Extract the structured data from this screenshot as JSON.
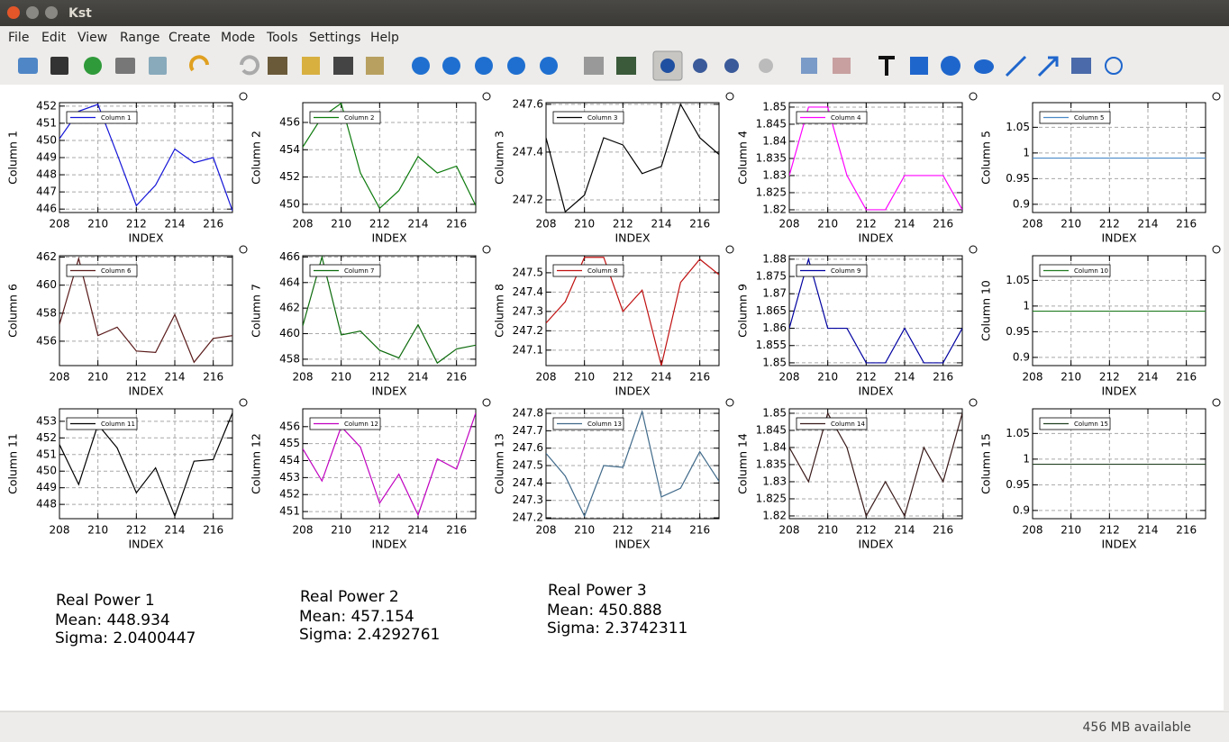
{
  "window": {
    "title": "Kst"
  },
  "menu": [
    "File",
    "Edit",
    "View",
    "Range",
    "Create",
    "Mode",
    "Tools",
    "Settings",
    "Help"
  ],
  "status": "456 MB available",
  "stats": [
    {
      "title": "Real Power 1",
      "mean": "Mean: 448.934",
      "sigma": "Sigma: 2.0400447"
    },
    {
      "title": "Real Power 2",
      "mean": "Mean: 457.154",
      "sigma": "Sigma: 2.4292761"
    },
    {
      "title": "Real Power 3",
      "mean": "Mean: 450.888",
      "sigma": "Sigma: 2.3742311"
    }
  ],
  "chart_data": [
    {
      "type": "line",
      "ylabel": "Column 1",
      "xlabel": "INDEX",
      "grid": true,
      "x": [
        208,
        209,
        210,
        211,
        212,
        213,
        214,
        215,
        216,
        217
      ],
      "xlim": [
        208,
        217
      ],
      "xticks": [
        208,
        210,
        212,
        214,
        216
      ],
      "ylim": [
        445.8,
        452.2
      ],
      "yticks": [
        446,
        447,
        448,
        449,
        450,
        451,
        452
      ],
      "series": [
        {
          "name": "Column 1",
          "color": "#1414d8",
          "values": [
            450.1,
            451.7,
            452.1,
            449.2,
            446.2,
            447.4,
            449.5,
            448.7,
            449.0,
            445.9
          ]
        }
      ]
    },
    {
      "type": "line",
      "ylabel": "Column 2",
      "xlabel": "INDEX",
      "grid": true,
      "x": [
        208,
        209,
        210,
        211,
        212,
        213,
        214,
        215,
        216,
        217
      ],
      "xlim": [
        208,
        217
      ],
      "xticks": [
        208,
        210,
        212,
        214,
        216
      ],
      "ylim": [
        449.4,
        457.45
      ],
      "yticks": [
        450,
        452,
        454,
        456
      ],
      "series": [
        {
          "name": "Column 2",
          "color": "#0c7a0c",
          "values": [
            454.2,
            456.4,
            457.4,
            452.3,
            449.7,
            451.0,
            453.5,
            452.3,
            452.8,
            449.9
          ]
        }
      ]
    },
    {
      "type": "line",
      "ylabel": "Column 3",
      "xlabel": "INDEX",
      "grid": true,
      "x": [
        208,
        209,
        210,
        211,
        212,
        213,
        214,
        215,
        216,
        217
      ],
      "xlim": [
        208,
        217
      ],
      "xticks": [
        208,
        210,
        212,
        214,
        216
      ],
      "ylim": [
        247.147,
        247.607
      ],
      "yticks": [
        247.2,
        247.4,
        247.6
      ],
      "series": [
        {
          "name": "Column 3",
          "color": "#000000",
          "values": [
            247.46,
            247.15,
            247.22,
            247.46,
            247.43,
            247.31,
            247.34,
            247.6,
            247.46,
            247.39
          ]
        }
      ]
    },
    {
      "type": "line",
      "ylabel": "Column 4",
      "xlabel": "INDEX",
      "grid": true,
      "x": [
        208,
        209,
        210,
        211,
        212,
        213,
        214,
        215,
        216,
        217
      ],
      "xlim": [
        208,
        217
      ],
      "xticks": [
        208,
        210,
        212,
        214,
        216
      ],
      "ylim": [
        1.8192,
        1.8513
      ],
      "yticks": [
        1.82,
        1.825,
        1.83,
        1.835,
        1.84,
        1.845,
        1.85
      ],
      "series": [
        {
          "name": "Column 4",
          "color": "#ff00ff",
          "values": [
            1.83,
            1.85,
            1.85,
            1.83,
            1.82,
            1.82,
            1.83,
            1.83,
            1.83,
            1.82
          ]
        }
      ]
    },
    {
      "type": "line",
      "ylabel": "Column 5",
      "xlabel": "INDEX",
      "grid": true,
      "x": [
        208,
        209,
        210,
        211,
        212,
        213,
        214,
        215,
        216,
        217
      ],
      "xlim": [
        208,
        217
      ],
      "xticks": [
        208,
        210,
        212,
        214,
        216
      ],
      "ylim": [
        0.884,
        1.098
      ],
      "yticks": [
        0.9,
        0.95,
        1,
        1.05
      ],
      "series": [
        {
          "name": "Column 5",
          "color": "#4a8ac8",
          "values": [
            0.99,
            0.99,
            0.99,
            0.99,
            0.99,
            0.99,
            0.99,
            0.99,
            0.99,
            0.99
          ]
        }
      ]
    },
    {
      "type": "line",
      "ylabel": "Column 6",
      "xlabel": "INDEX",
      "grid": true,
      "x": [
        208,
        209,
        210,
        211,
        212,
        213,
        214,
        215,
        216,
        217
      ],
      "xlim": [
        208,
        217
      ],
      "xticks": [
        208,
        210,
        212,
        214,
        216
      ],
      "ylim": [
        454.26,
        462.1
      ],
      "yticks": [
        456,
        458,
        460,
        462
      ],
      "series": [
        {
          "name": "Column 6",
          "color": "#5a1a1a",
          "values": [
            457.2,
            461.9,
            456.4,
            457.0,
            455.3,
            455.2,
            457.9,
            454.5,
            456.2,
            456.4
          ]
        }
      ]
    },
    {
      "type": "line",
      "ylabel": "Column 7",
      "xlabel": "INDEX",
      "grid": true,
      "x": [
        208,
        209,
        210,
        211,
        212,
        213,
        214,
        215,
        216,
        217
      ],
      "xlim": [
        208,
        217
      ],
      "xticks": [
        208,
        210,
        212,
        214,
        216
      ],
      "ylim": [
        457.5,
        466.1
      ],
      "yticks": [
        458,
        460,
        462,
        464,
        466
      ],
      "series": [
        {
          "name": "Column 7",
          "color": "#0c6a0c",
          "values": [
            460.6,
            466.0,
            459.9,
            460.2,
            458.7,
            458.1,
            460.7,
            457.7,
            458.8,
            459.1
          ]
        }
      ]
    },
    {
      "type": "line",
      "ylabel": "Column 8",
      "xlabel": "INDEX",
      "grid": true,
      "x": [
        208,
        209,
        210,
        211,
        212,
        213,
        214,
        215,
        216,
        217
      ],
      "xlim": [
        208,
        217
      ],
      "xticks": [
        208,
        210,
        212,
        214,
        216
      ],
      "ylim": [
        247.02,
        247.588
      ],
      "yticks": [
        247.1,
        247.2,
        247.3,
        247.4,
        247.5
      ],
      "series": [
        {
          "name": "Column 8",
          "color": "#c01010",
          "values": [
            247.24,
            247.35,
            247.58,
            247.58,
            247.3,
            247.41,
            247.02,
            247.45,
            247.57,
            247.49
          ]
        }
      ]
    },
    {
      "type": "line",
      "ylabel": "Column 9",
      "xlabel": "INDEX",
      "grid": true,
      "x": [
        208,
        209,
        210,
        211,
        212,
        213,
        214,
        215,
        216,
        217
      ],
      "xlim": [
        208,
        217
      ],
      "xticks": [
        208,
        210,
        212,
        214,
        216
      ],
      "ylim": [
        1.8492,
        1.881
      ],
      "yticks": [
        1.85,
        1.855,
        1.86,
        1.865,
        1.87,
        1.875,
        1.88
      ],
      "series": [
        {
          "name": "Column 9",
          "color": "#0000a0",
          "values": [
            1.86,
            1.88,
            1.86,
            1.86,
            1.85,
            1.85,
            1.86,
            1.85,
            1.85,
            1.86
          ]
        }
      ]
    },
    {
      "type": "line",
      "ylabel": "Column 10",
      "xlabel": "INDEX",
      "grid": true,
      "x": [
        208,
        209,
        210,
        211,
        212,
        213,
        214,
        215,
        216,
        217
      ],
      "xlim": [
        208,
        217
      ],
      "xticks": [
        208,
        210,
        212,
        214,
        216
      ],
      "ylim": [
        0.884,
        1.098
      ],
      "yticks": [
        0.9,
        0.95,
        1,
        1.05
      ],
      "series": [
        {
          "name": "Column 10",
          "color": "#207a20",
          "values": [
            0.99,
            0.99,
            0.99,
            0.99,
            0.99,
            0.99,
            0.99,
            0.99,
            0.99,
            0.99
          ]
        }
      ]
    },
    {
      "type": "line",
      "ylabel": "Column 11",
      "xlabel": "INDEX",
      "grid": true,
      "x": [
        208,
        209,
        210,
        211,
        212,
        213,
        214,
        215,
        216,
        217
      ],
      "xlim": [
        208,
        217
      ],
      "xticks": [
        208,
        210,
        212,
        214,
        216
      ],
      "ylim": [
        447.14,
        453.75
      ],
      "yticks": [
        448,
        449,
        450,
        451,
        452,
        453
      ],
      "series": [
        {
          "name": "Column 11",
          "color": "#000000",
          "values": [
            451.6,
            449.2,
            452.8,
            451.4,
            448.7,
            450.2,
            447.3,
            450.6,
            450.7,
            453.5
          ]
        }
      ]
    },
    {
      "type": "line",
      "ylabel": "Column 12",
      "xlabel": "INDEX",
      "grid": true,
      "x": [
        208,
        209,
        210,
        211,
        212,
        213,
        214,
        215,
        216,
        217
      ],
      "xlim": [
        208,
        217
      ],
      "xticks": [
        208,
        210,
        212,
        214,
        216
      ],
      "ylim": [
        450.58,
        457.05
      ],
      "yticks": [
        451,
        452,
        453,
        454,
        455,
        456
      ],
      "series": [
        {
          "name": "Column 12",
          "color": "#c000c0",
          "values": [
            454.7,
            452.8,
            456.0,
            454.8,
            451.5,
            453.2,
            450.8,
            454.1,
            453.5,
            456.8
          ]
        }
      ]
    },
    {
      "type": "line",
      "ylabel": "Column 13",
      "xlabel": "INDEX",
      "grid": true,
      "x": [
        208,
        209,
        210,
        211,
        212,
        213,
        214,
        215,
        216,
        217
      ],
      "xlim": [
        208,
        217
      ],
      "xticks": [
        208,
        210,
        212,
        214,
        216
      ],
      "ylim": [
        247.195,
        247.826
      ],
      "yticks": [
        247.2,
        247.3,
        247.4,
        247.5,
        247.6,
        247.7,
        247.8
      ],
      "series": [
        {
          "name": "Column 13",
          "color": "#406a8a",
          "values": [
            247.57,
            247.44,
            247.21,
            247.5,
            247.49,
            247.81,
            247.32,
            247.37,
            247.58,
            247.41
          ]
        }
      ]
    },
    {
      "type": "line",
      "ylabel": "Column 14",
      "xlabel": "INDEX",
      "grid": true,
      "x": [
        208,
        209,
        210,
        211,
        212,
        213,
        214,
        215,
        216,
        217
      ],
      "xlim": [
        208,
        217
      ],
      "xticks": [
        208,
        210,
        212,
        214,
        216
      ],
      "ylim": [
        1.8192,
        1.8513
      ],
      "yticks": [
        1.82,
        1.825,
        1.83,
        1.835,
        1.84,
        1.845,
        1.85
      ],
      "series": [
        {
          "name": "Column 14",
          "color": "#3a1a1a",
          "values": [
            1.84,
            1.83,
            1.85,
            1.84,
            1.82,
            1.83,
            1.82,
            1.84,
            1.83,
            1.85
          ]
        }
      ]
    },
    {
      "type": "line",
      "ylabel": "Column 15",
      "xlabel": "INDEX",
      "grid": true,
      "x": [
        208,
        209,
        210,
        211,
        212,
        213,
        214,
        215,
        216,
        217
      ],
      "xlim": [
        208,
        217
      ],
      "xticks": [
        208,
        210,
        212,
        214,
        216
      ],
      "ylim": [
        0.884,
        1.098
      ],
      "yticks": [
        0.9,
        0.95,
        1,
        1.05
      ],
      "series": [
        {
          "name": "Column 15",
          "color": "#204020",
          "values": [
            0.99,
            0.99,
            0.99,
            0.99,
            0.99,
            0.99,
            0.99,
            0.99,
            0.99,
            0.99
          ]
        }
      ]
    }
  ]
}
